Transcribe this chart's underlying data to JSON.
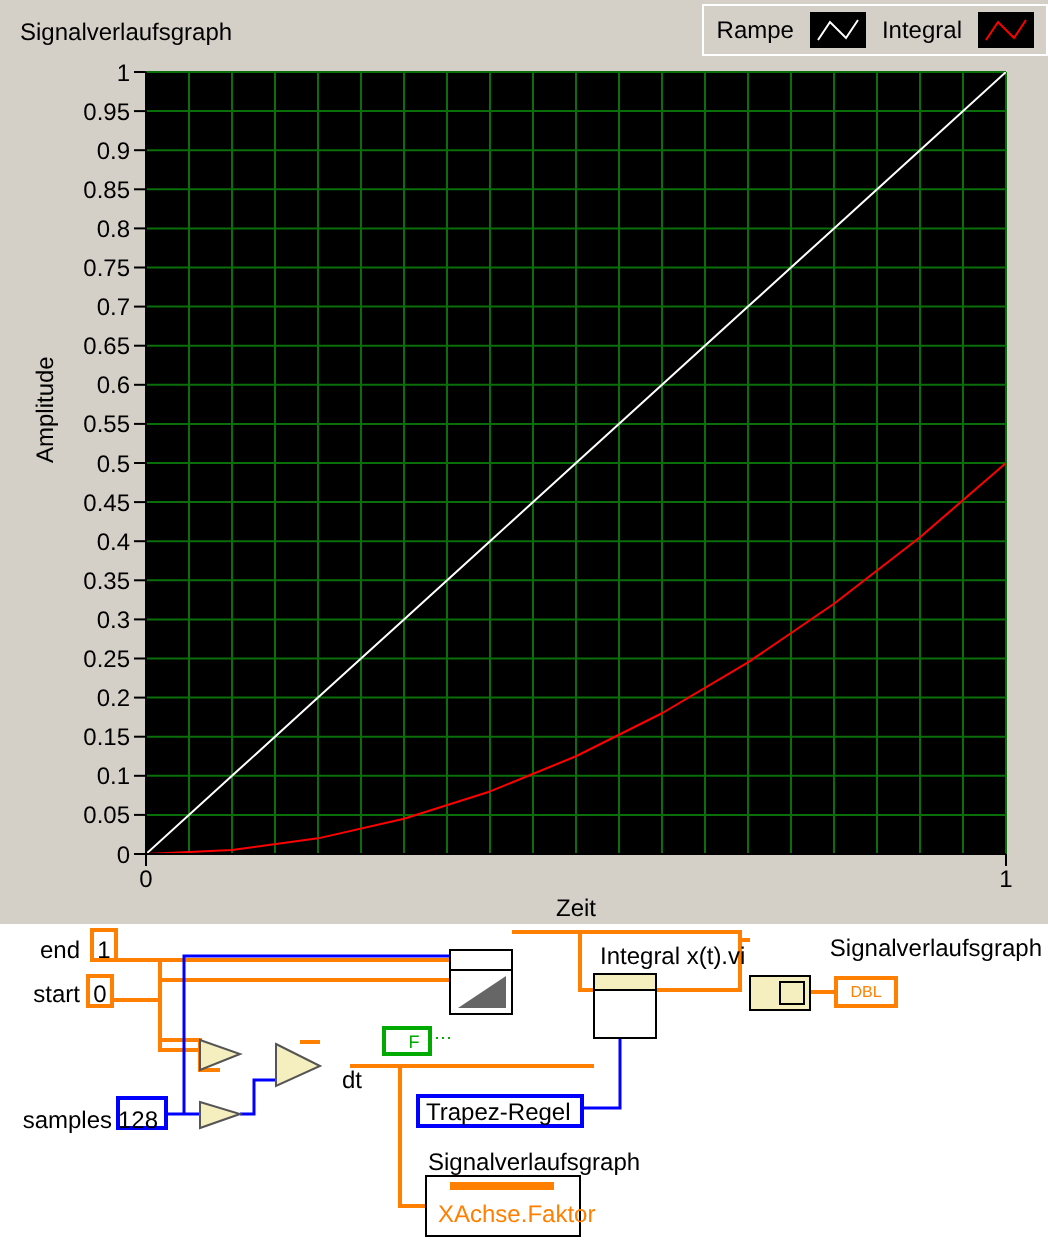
{
  "chart_data": {
    "type": "line",
    "title": "Signalverlaufsgraph",
    "xlabel": "Zeit",
    "ylabel": "Amplitude",
    "x": [
      0,
      0.1,
      0.2,
      0.3,
      0.4,
      0.5,
      0.6,
      0.7,
      0.8,
      0.9,
      1
    ],
    "series": [
      {
        "name": "Rampe",
        "color": "#ffffff",
        "values": [
          0,
          0.1,
          0.2,
          0.3,
          0.4,
          0.5,
          0.6,
          0.7,
          0.8,
          0.9,
          1
        ]
      },
      {
        "name": "Integral",
        "color": "#ff0000",
        "values": [
          0,
          0.005,
          0.02,
          0.045,
          0.08,
          0.125,
          0.18,
          0.245,
          0.32,
          0.405,
          0.5
        ]
      }
    ],
    "xlim": [
      0,
      1
    ],
    "xticks": [
      0,
      1
    ],
    "ylim": [
      0,
      1
    ],
    "yticks": [
      0,
      0.05,
      0.1,
      0.15,
      0.2,
      0.25,
      0.3,
      0.35,
      0.4,
      0.45,
      0.5,
      0.55,
      0.6,
      0.65,
      0.7,
      0.75,
      0.8,
      0.85,
      0.9,
      0.95,
      1
    ],
    "grid": true,
    "legend": "top right",
    "marker": "none",
    "line_style": "solid",
    "annotations": [
      "end",
      "1",
      "start",
      "0",
      "samples",
      "128",
      "dt",
      "Integral x(t).vi",
      "Trapez-Regel",
      "Signalverlaufsgraph",
      "Signalverlaufsgraph",
      "XAchse.Faktor",
      "DBL",
      "F"
    ]
  }
}
